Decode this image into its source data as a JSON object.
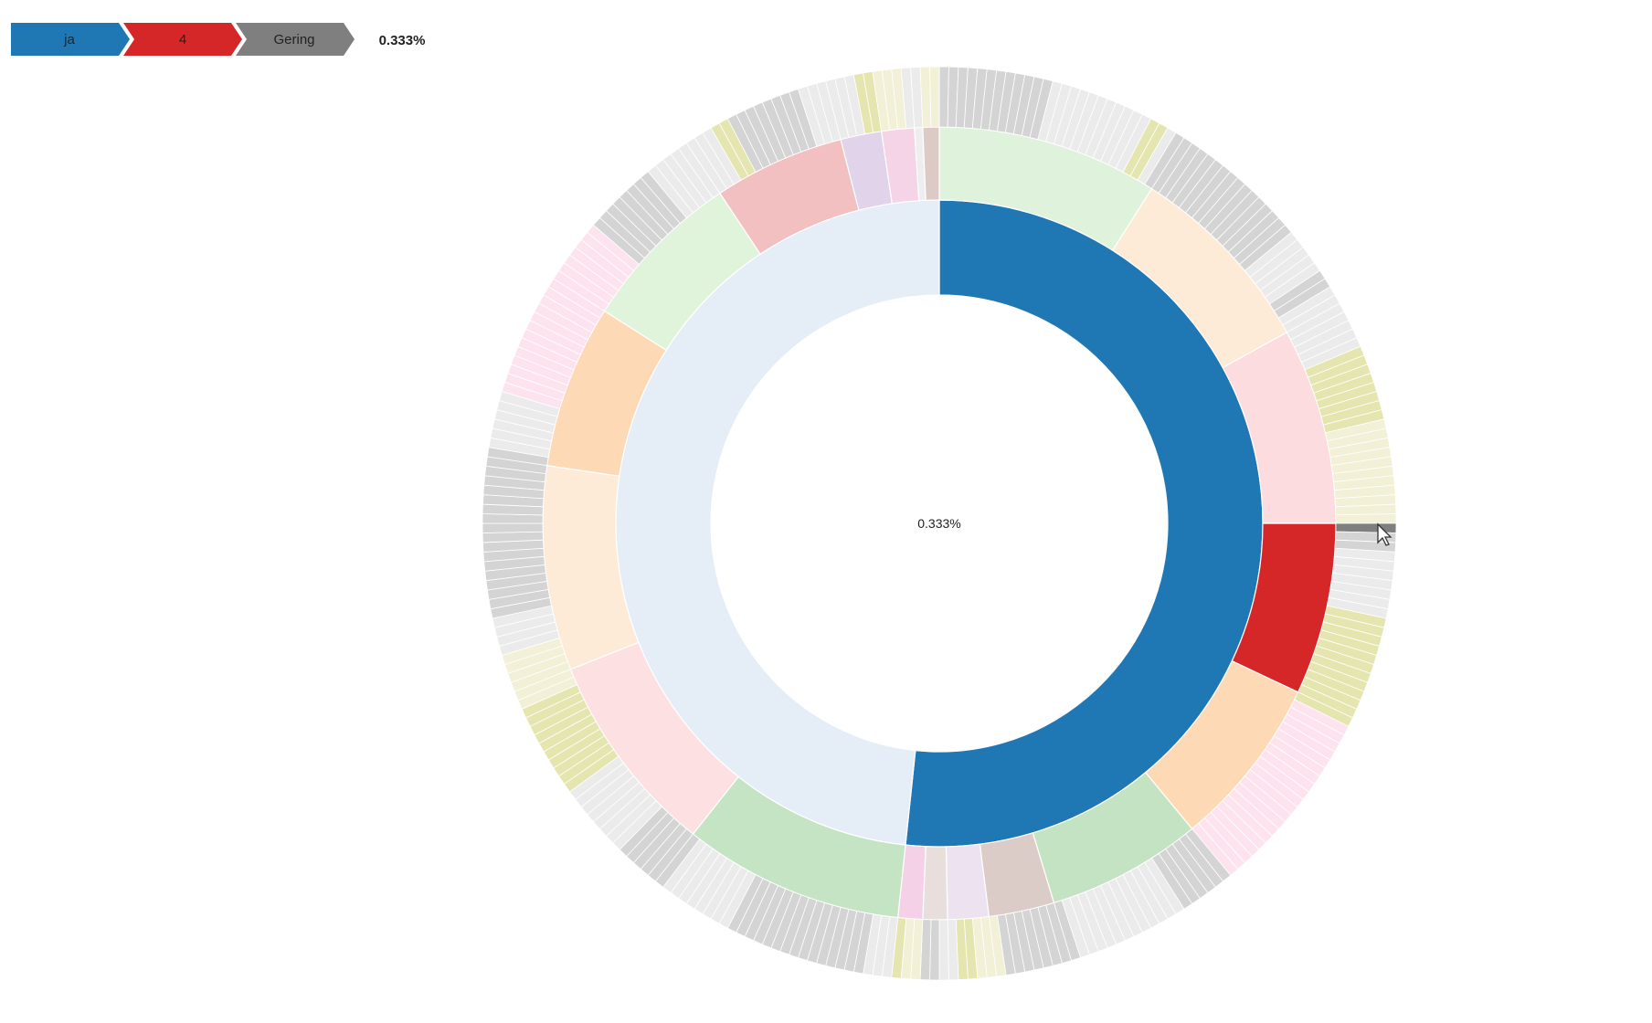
{
  "breadcrumb": {
    "items": [
      {
        "label": "ja",
        "color": "#1f77b4"
      },
      {
        "label": "4",
        "color": "#d62728"
      },
      {
        "label": "Gering",
        "color": "#7f7f7f"
      }
    ],
    "percentage": "0.333%"
  },
  "chart_data": {
    "type": "sunburst",
    "center_label": "0.333%",
    "total_leaves": 300,
    "leaf_share": "0.333%",
    "level1": [
      {
        "label": "ja",
        "value": 155,
        "color": "#1f77b4",
        "highlighted": true
      },
      {
        "value": 145,
        "color": "#e5edf7"
      }
    ],
    "level2": [
      {
        "value": 27,
        "color": "#dff2dc"
      },
      {
        "value": 24,
        "color": "#fdebd7"
      },
      {
        "value": 24,
        "color": "#fddcdf"
      },
      {
        "label": "4",
        "value": 21,
        "color": "#d62728",
        "highlighted": true
      },
      {
        "value": 21,
        "color": "#fdd9b5"
      },
      {
        "value": 19,
        "color": "#c4e3c2"
      },
      {
        "value": 8,
        "color": "#dbccc8"
      },
      {
        "value": 5,
        "color": "#ece2f0"
      },
      {
        "value": 3,
        "color": "#e8dfdc"
      },
      {
        "value": 3,
        "color": "#f5d1e8"
      },
      {
        "value": 27,
        "color": "#c5e4c3"
      },
      {
        "value": 25,
        "color": "#fde0e1"
      },
      {
        "value": 25,
        "color": "#fdebd8"
      },
      {
        "value": 20,
        "color": "#fdd9b5"
      },
      {
        "value": 20,
        "color": "#e0f3db"
      },
      {
        "value": 16,
        "color": "#f2c0c0"
      },
      {
        "value": 5,
        "color": "#e0d3ea"
      },
      {
        "value": 4,
        "color": "#f5d4e8"
      },
      {
        "value": 1,
        "color": "#eeeeee"
      },
      {
        "value": 2,
        "color": "#dccac6"
      }
    ],
    "level3_palette": {
      "D": "#d4d4d4",
      "L": "#ebebeb",
      "Y": "#e5e5b0",
      "W": "#f2f0d6",
      "P": "#fde3ee",
      "G": "#7f7f7f"
    },
    "level3_runs": [
      [
        "D",
        12
      ],
      [
        "L",
        11
      ],
      [
        "Y",
        2
      ],
      [
        "L",
        1
      ],
      [
        "D",
        16
      ],
      [
        "L",
        5
      ],
      [
        "D",
        2
      ],
      [
        "L",
        7
      ],
      [
        "Y",
        8
      ],
      [
        "W",
        11
      ],
      [
        "G",
        1
      ],
      [
        "D",
        2
      ],
      [
        "L",
        7
      ],
      [
        "Y",
        12
      ],
      [
        "P",
        20
      ],
      [
        "D",
        6
      ],
      [
        "L",
        12
      ],
      [
        "D",
        8
      ],
      [
        "W",
        3
      ],
      [
        "Y",
        2
      ],
      [
        "L",
        2
      ],
      [
        "D",
        2
      ],
      [
        "W",
        2
      ],
      [
        "Y",
        1
      ],
      [
        "L",
        3
      ],
      [
        "D",
        15
      ],
      [
        "L",
        8
      ],
      [
        "D",
        6
      ],
      [
        "L",
        8
      ],
      [
        "Y",
        10
      ],
      [
        "W",
        6
      ],
      [
        "L",
        4
      ],
      [
        "D",
        18
      ],
      [
        "L",
        6
      ],
      [
        "P",
        20
      ],
      [
        "D",
        8
      ],
      [
        "L",
        8
      ],
      [
        "Y",
        2
      ],
      [
        "D",
        8
      ],
      [
        "L",
        6
      ],
      [
        "Y",
        2
      ],
      [
        "W",
        3
      ],
      [
        "L",
        2
      ],
      [
        "W",
        2
      ]
    ],
    "highlighted_leaf": {
      "label": "Gering",
      "value": 1
    }
  }
}
